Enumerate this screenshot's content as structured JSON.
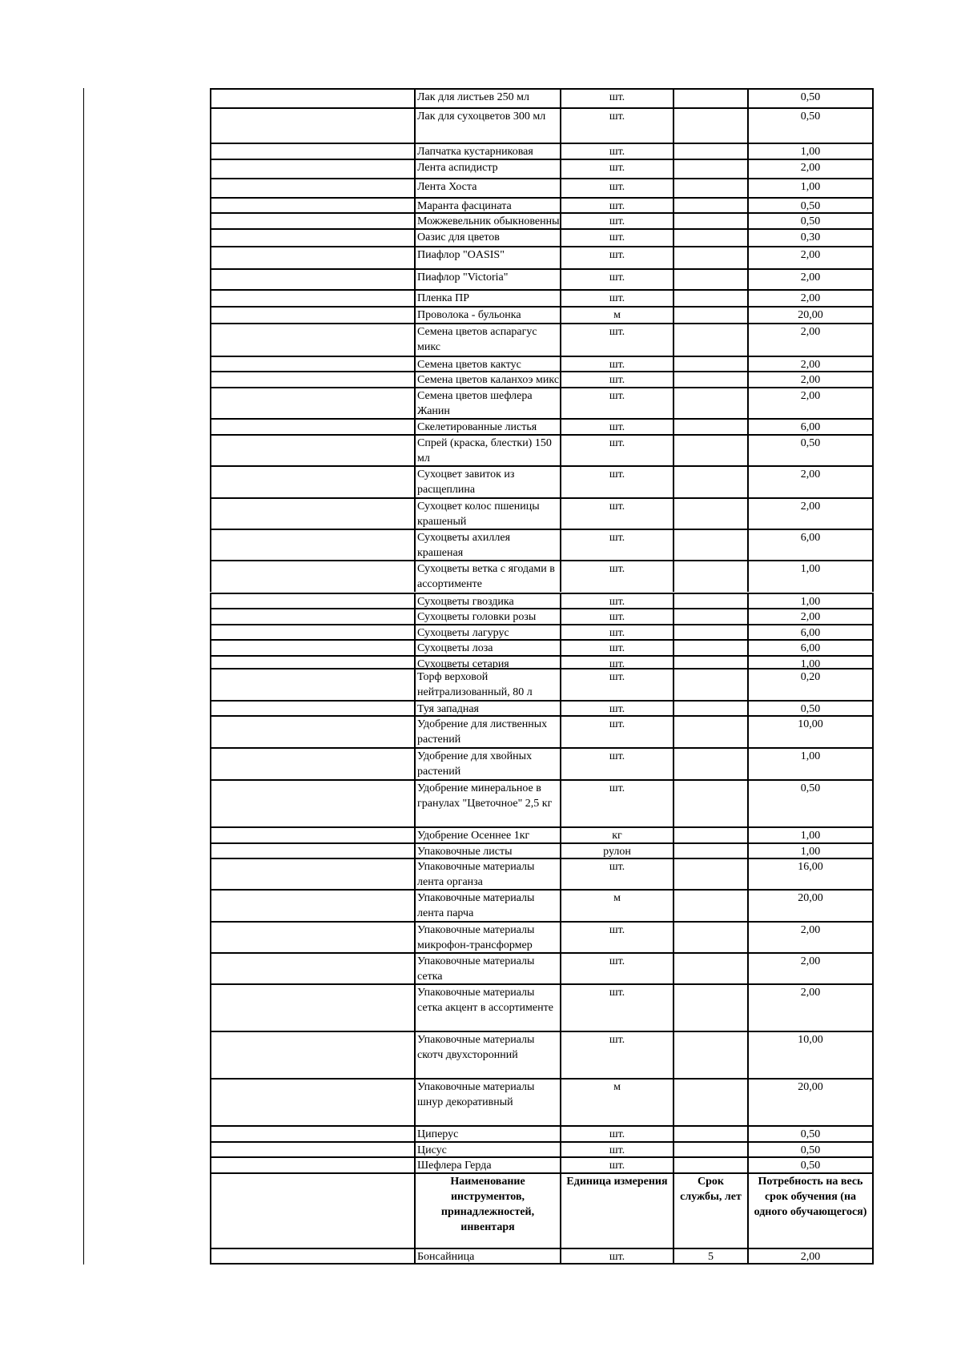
{
  "rows": [
    {
      "name": "Лак для листьев 250 мл",
      "unit": "шт.",
      "life": "",
      "qty": "0,50"
    },
    {
      "name": "Лак для сухоцветов 300 мл",
      "unit": "шт.",
      "life": "",
      "qty": "0,50"
    },
    {
      "name": "Лапчатка кустарниковая",
      "unit": "шт.",
      "life": "",
      "qty": "1,00"
    },
    {
      "name": "Лента аспидистр",
      "unit": "шт.",
      "life": "",
      "qty": "2,00"
    },
    {
      "name": "Лента Хоста",
      "unit": "шт.",
      "life": "",
      "qty": "1,00"
    },
    {
      "name": "Маранта фасцината",
      "unit": "шт.",
      "life": "",
      "qty": "0,50"
    },
    {
      "name": "Можжевельник обыкновенный",
      "unit": "шт.",
      "life": "",
      "qty": "0,50"
    },
    {
      "name": "Оазис для цветов",
      "unit": "шт.",
      "life": "",
      "qty": "0,30"
    },
    {
      "name": "Пиафлор \"OASIS\"",
      "unit": "шт.",
      "life": "",
      "qty": "2,00"
    },
    {
      "name": "Пиафлор \"Victoria\"",
      "unit": "шт.",
      "life": "",
      "qty": "2,00"
    },
    {
      "name": "Пленка ПР",
      "unit": "шт.",
      "life": "",
      "qty": "2,00"
    },
    {
      "name": "Проволока - бульонка",
      "unit": "м",
      "life": "",
      "qty": "20,00"
    },
    {
      "name": "Семена цветов аспарагус микс",
      "unit": "шт.",
      "life": "",
      "qty": "2,00"
    },
    {
      "name": "Семена цветов кактус",
      "unit": "шт.",
      "life": "",
      "qty": "2,00"
    },
    {
      "name": "Семена цветов каланхоэ микс",
      "unit": "шт.",
      "life": "",
      "qty": "2,00"
    },
    {
      "name": "Семена цветов шефлера Жанин",
      "unit": "шт.",
      "life": "",
      "qty": "2,00"
    },
    {
      "name": "Скелетированные листья",
      "unit": "шт.",
      "life": "",
      "qty": "6,00"
    },
    {
      "name": "Спрей (краска, блестки) 150 мл",
      "unit": "шт.",
      "life": "",
      "qty": "0,50"
    },
    {
      "name": "Сухоцвет завиток из расщеплина",
      "unit": "шт.",
      "life": "",
      "qty": "2,00"
    },
    {
      "name": "Сухоцвет колос пшеницы крашеный",
      "unit": "шт.",
      "life": "",
      "qty": "2,00"
    },
    {
      "name": "Сухоцветы ахиллея крашеная",
      "unit": "шт.",
      "life": "",
      "qty": "6,00"
    },
    {
      "name": "Сухоцветы ветка с ягодами в ассортименте",
      "unit": "шт.",
      "life": "",
      "qty": "1,00"
    },
    {
      "name": "Сухоцветы гвоздика",
      "unit": "шт.",
      "life": "",
      "qty": "1,00"
    },
    {
      "name": "Сухоцветы головки розы",
      "unit": "шт.",
      "life": "",
      "qty": "2,00"
    },
    {
      "name": "Сухоцветы лагурус",
      "unit": "шт.",
      "life": "",
      "qty": "6,00"
    },
    {
      "name": "Сухоцветы лоза",
      "unit": "шт.",
      "life": "",
      "qty": "6,00"
    },
    {
      "name": "Сухоцветы сетария",
      "unit": "шт.",
      "life": "",
      "qty": "1,00"
    },
    {
      "name": "Торф верховой нейтрализованный, 80 л",
      "unit": "шт.",
      "life": "",
      "qty": "0,20"
    },
    {
      "name": "Туя западная",
      "unit": "шт.",
      "life": "",
      "qty": "0,50"
    },
    {
      "name": "Удобрение для лиственных растений",
      "unit": "шт.",
      "life": "",
      "qty": "10,00"
    },
    {
      "name": "Удобрение для хвойных растений",
      "unit": "шт.",
      "life": "",
      "qty": "1,00"
    },
    {
      "name": "Удобрение минеральное в гранулах \"Цветочное\" 2,5 кг",
      "unit": "шт.",
      "life": "",
      "qty": "0,50"
    },
    {
      "name": "Удобрение Осеннее 1кг",
      "unit": "кг",
      "life": "",
      "qty": "1,00"
    },
    {
      "name": "Упаковочные листы",
      "unit": "рулон",
      "life": "",
      "qty": "1,00"
    },
    {
      "name": "Упаковочные материалы лента органза",
      "unit": "шт.",
      "life": "",
      "qty": "16,00"
    },
    {
      "name": "Упаковочные материалы лента парча",
      "unit": "м",
      "life": "",
      "qty": "20,00"
    },
    {
      "name": "Упаковочные материалы микрофон-трансформер",
      "unit": "шт.",
      "life": "",
      "qty": "2,00"
    },
    {
      "name": "Упаковочные материалы сетка",
      "unit": "шт.",
      "life": "",
      "qty": "2,00"
    },
    {
      "name": "Упаковочные материалы сетка акцент в ассортименте",
      "unit": "шт.",
      "life": "",
      "qty": "2,00"
    },
    {
      "name": "Упаковочные материалы скотч двухсторонний",
      "unit": "шт.",
      "life": "",
      "qty": "10,00"
    },
    {
      "name": "Упаковочные материалы шнур декоративный",
      "unit": "м",
      "life": "",
      "qty": "20,00"
    },
    {
      "name": "Циперус",
      "unit": "шт.",
      "life": "",
      "qty": "0,50"
    },
    {
      "name": "Цисус",
      "unit": "шт.",
      "life": "",
      "qty": "0,50"
    },
    {
      "name": "Шефлера Герда",
      "unit": "шт.",
      "life": "",
      "qty": "0,50"
    }
  ],
  "tools_header": {
    "name": "Наименование инструментов, принадлежностей, инвентаря",
    "unit": "Единица измерения",
    "life": "Срок службы, лет",
    "qty": "Потребность на весь срок обучения (на одного обучающегося)"
  },
  "tools_rows": [
    {
      "name": "Бонсайница",
      "unit": "шт.",
      "life": "5",
      "qty": "2,00"
    }
  ]
}
